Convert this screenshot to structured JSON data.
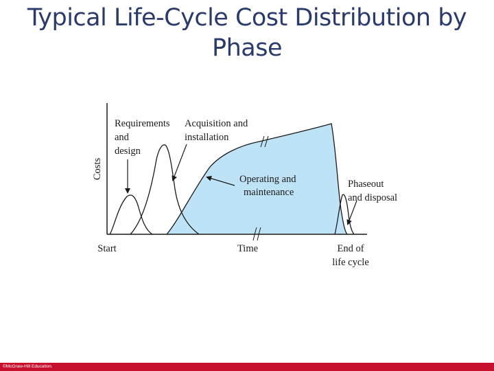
{
  "slide": {
    "title_line1": "Typical Life-Cycle Cost Distribution by",
    "title_line2": "Phase"
  },
  "diagram": {
    "y_axis_label": "Costs",
    "x_axis_label": "Time",
    "x_start_label": "Start",
    "x_end_label_line1": "End of",
    "x_end_label_line2": "life cycle",
    "phases": [
      {
        "lines": [
          "Requirements",
          "and",
          "design"
        ]
      },
      {
        "lines": [
          "Acquisition and",
          "installation"
        ]
      },
      {
        "lines": [
          "Operating and",
          "maintenance"
        ]
      },
      {
        "lines": [
          "Phaseout",
          "and disposal"
        ]
      }
    ],
    "colors": {
      "operating_fill": "#bfe3f6",
      "curve_stroke": "#1a1a1a",
      "title": "#2a3a6a",
      "footer_bar": "#c8102e"
    }
  },
  "footer": {
    "copyright": "©McGraw-Hill Education."
  }
}
